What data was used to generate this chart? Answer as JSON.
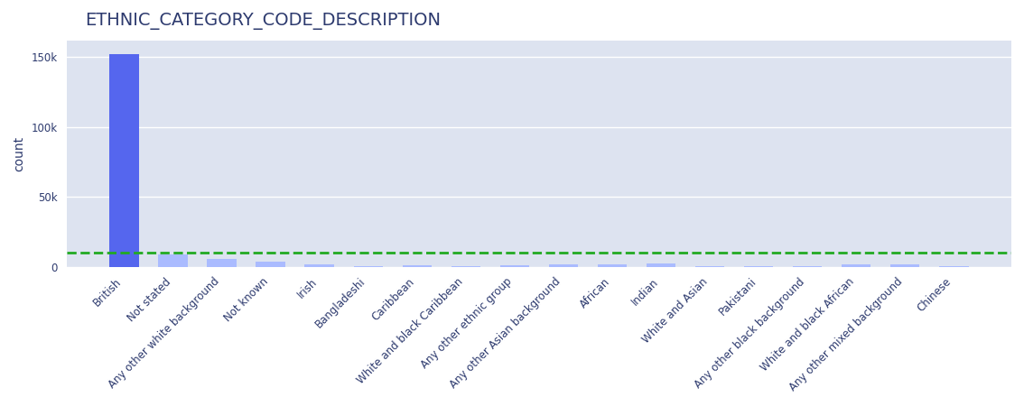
{
  "title": "ETHNIC_CATEGORY_CODE_DESCRIPTION",
  "ylabel": "count",
  "categories": [
    "British",
    "Not stated",
    "Any other white background",
    "Not known",
    "Irish",
    "Bangladeshi",
    "Caribbean",
    "White and black Caribbean",
    "Any other ethnic group",
    "Any other Asian background",
    "African",
    "Indian",
    "White and Asian",
    "Pakistani",
    "Any other black background",
    "White and black African",
    "Any other mixed background",
    "Chinese"
  ],
  "values": [
    152000,
    9000,
    5500,
    3500,
    1800,
    900,
    1500,
    800,
    1200,
    1600,
    1700,
    2500,
    700,
    800,
    600,
    1900,
    2200,
    600
  ],
  "bar_color_above": "#5566ee",
  "bar_color_below": "#aabbff",
  "threshold_value": 10000,
  "threshold_color": "#22aa22",
  "figure_bg": "#ffffff",
  "plot_bg": "#dde3f0",
  "grid_color": "#ffffff",
  "title_color": "#2d3a6e",
  "axis_label_color": "#2d3a6e",
  "tick_label_color": "#2d3a6e",
  "ylim": [
    0,
    162000
  ],
  "yticks": [
    0,
    50000,
    100000,
    150000
  ],
  "title_fontsize": 14,
  "tick_fontsize": 8.5,
  "ylabel_fontsize": 10
}
